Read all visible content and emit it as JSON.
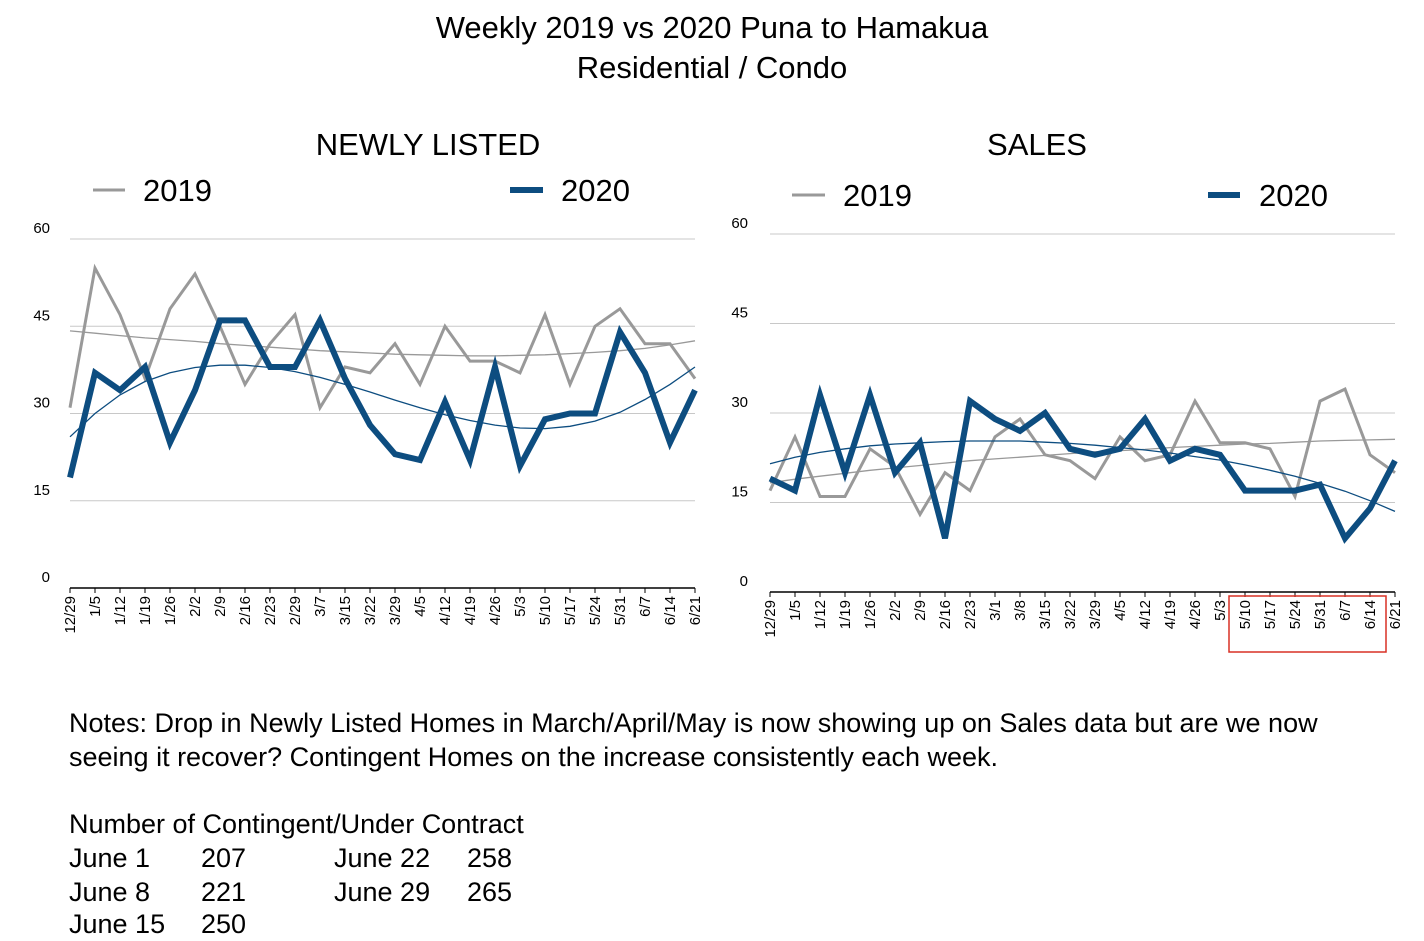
{
  "title": {
    "line1": "Weekly 2019 vs 2020 Puna to Hamakua",
    "line2": "Residential / Condo"
  },
  "chart_data": [
    {
      "type": "line",
      "title": "NEWLY LISTED",
      "categories": [
        "12/29",
        "1/5",
        "1/12",
        "1/19",
        "1/26",
        "2/2",
        "2/9",
        "2/16",
        "2/23",
        "2/29",
        "3/7",
        "3/15",
        "3/22",
        "3/29",
        "4/5",
        "4/12",
        "4/19",
        "4/26",
        "5/3",
        "5/10",
        "5/17",
        "5/24",
        "5/31",
        "6/7",
        "6/14",
        "6/21"
      ],
      "series": [
        {
          "name": "2019",
          "color": "#999999",
          "values": [
            31,
            55,
            47,
            36,
            48,
            54,
            45,
            35,
            42,
            47,
            31,
            38,
            37,
            42,
            35,
            45,
            39,
            39,
            37,
            47,
            35,
            45,
            48,
            42,
            42,
            36
          ]
        },
        {
          "name": "2020",
          "color": "#0d4d80",
          "values": [
            19,
            37,
            34,
            38,
            25,
            34,
            46,
            46,
            38,
            38,
            46,
            36,
            28,
            23,
            22,
            32,
            22,
            38,
            21,
            29,
            30,
            30,
            44,
            37,
            25,
            34
          ]
        }
      ],
      "trendlines": [
        {
          "series": "2019",
          "color": "#999999",
          "values": [
            44.2,
            43.8,
            43.4,
            43.0,
            42.7,
            42.4,
            42.0,
            41.7,
            41.4,
            41.1,
            40.8,
            40.6,
            40.4,
            40.2,
            40.1,
            40.0,
            39.9,
            39.9,
            40.0,
            40.1,
            40.3,
            40.5,
            40.8,
            41.2,
            41.8,
            42.5
          ]
        },
        {
          "series": "2020",
          "color": "#0d4d80",
          "values": [
            26.0,
            30.0,
            33.2,
            35.5,
            37.0,
            37.9,
            38.3,
            38.3,
            37.9,
            37.2,
            36.2,
            35.0,
            33.7,
            32.3,
            31.0,
            29.8,
            28.8,
            28.0,
            27.5,
            27.4,
            27.8,
            28.7,
            30.2,
            32.4,
            35.0,
            38.0
          ]
        }
      ],
      "ylim": [
        0,
        60
      ],
      "yticks": [
        0,
        15,
        30,
        45,
        60
      ],
      "grid": true,
      "legend": "top"
    },
    {
      "type": "line",
      "title": "SALES",
      "categories": [
        "12/29",
        "1/5",
        "1/12",
        "1/19",
        "1/26",
        "2/2",
        "2/9",
        "2/16",
        "2/23",
        "3/1",
        "3/8",
        "3/15",
        "3/22",
        "3/29",
        "4/5",
        "4/12",
        "4/19",
        "4/26",
        "5/3",
        "5/10",
        "5/17",
        "5/24",
        "5/31",
        "6/7",
        "6/14",
        "6/21"
      ],
      "series": [
        {
          "name": "2019",
          "color": "#999999",
          "values": [
            17,
            26,
            16,
            16,
            24,
            21,
            13,
            20,
            17,
            26,
            29,
            23,
            22,
            19,
            26,
            22,
            23,
            32,
            25,
            25,
            24,
            16,
            32,
            34,
            23,
            20
          ]
        },
        {
          "name": "2020",
          "color": "#0d4d80",
          "values": [
            19,
            17,
            33,
            20,
            33,
            20,
            25,
            9,
            32,
            29,
            27,
            30,
            24,
            23,
            24,
            29,
            22,
            24,
            23,
            17,
            17,
            17,
            18,
            9,
            14,
            22
          ]
        }
      ],
      "trendlines": [
        {
          "series": "2019",
          "color": "#999999",
          "values": [
            18.3,
            18.9,
            19.4,
            19.9,
            20.4,
            20.8,
            21.2,
            21.6,
            22.0,
            22.3,
            22.6,
            22.9,
            23.2,
            23.5,
            23.7,
            23.9,
            24.2,
            24.4,
            24.6,
            24.8,
            24.9,
            25.1,
            25.3,
            25.4,
            25.5,
            25.6
          ]
        },
        {
          "series": "2020",
          "color": "#0d4d80",
          "values": [
            21.5,
            22.6,
            23.4,
            24.0,
            24.5,
            24.8,
            25.0,
            25.2,
            25.3,
            25.3,
            25.3,
            25.1,
            24.9,
            24.6,
            24.2,
            23.8,
            23.3,
            22.7,
            22.1,
            21.3,
            20.4,
            19.4,
            18.2,
            16.9,
            15.3,
            13.5
          ]
        }
      ],
      "ylim": [
        0,
        60
      ],
      "yticks": [
        0,
        15,
        30,
        45,
        60
      ],
      "grid": true,
      "legend": "top",
      "highlight": {
        "from": "5/10",
        "to": "6/14",
        "color": "#d93025"
      }
    }
  ],
  "notes": "Notes: Drop in Newly Listed Homes in March/April/May is now showing up on Sales data but are we now seeing it recover? Contingent Homes on the increase consistently each week.",
  "contract": {
    "title": "Number of Contingent/Under Contract",
    "rows": [
      {
        "label": "June 1",
        "value": "207"
      },
      {
        "label": "June 8",
        "value": "221"
      },
      {
        "label": "June 15",
        "value": "250"
      },
      {
        "label": "June 22",
        "value": "258"
      },
      {
        "label": "June 29",
        "value": "265"
      }
    ]
  }
}
